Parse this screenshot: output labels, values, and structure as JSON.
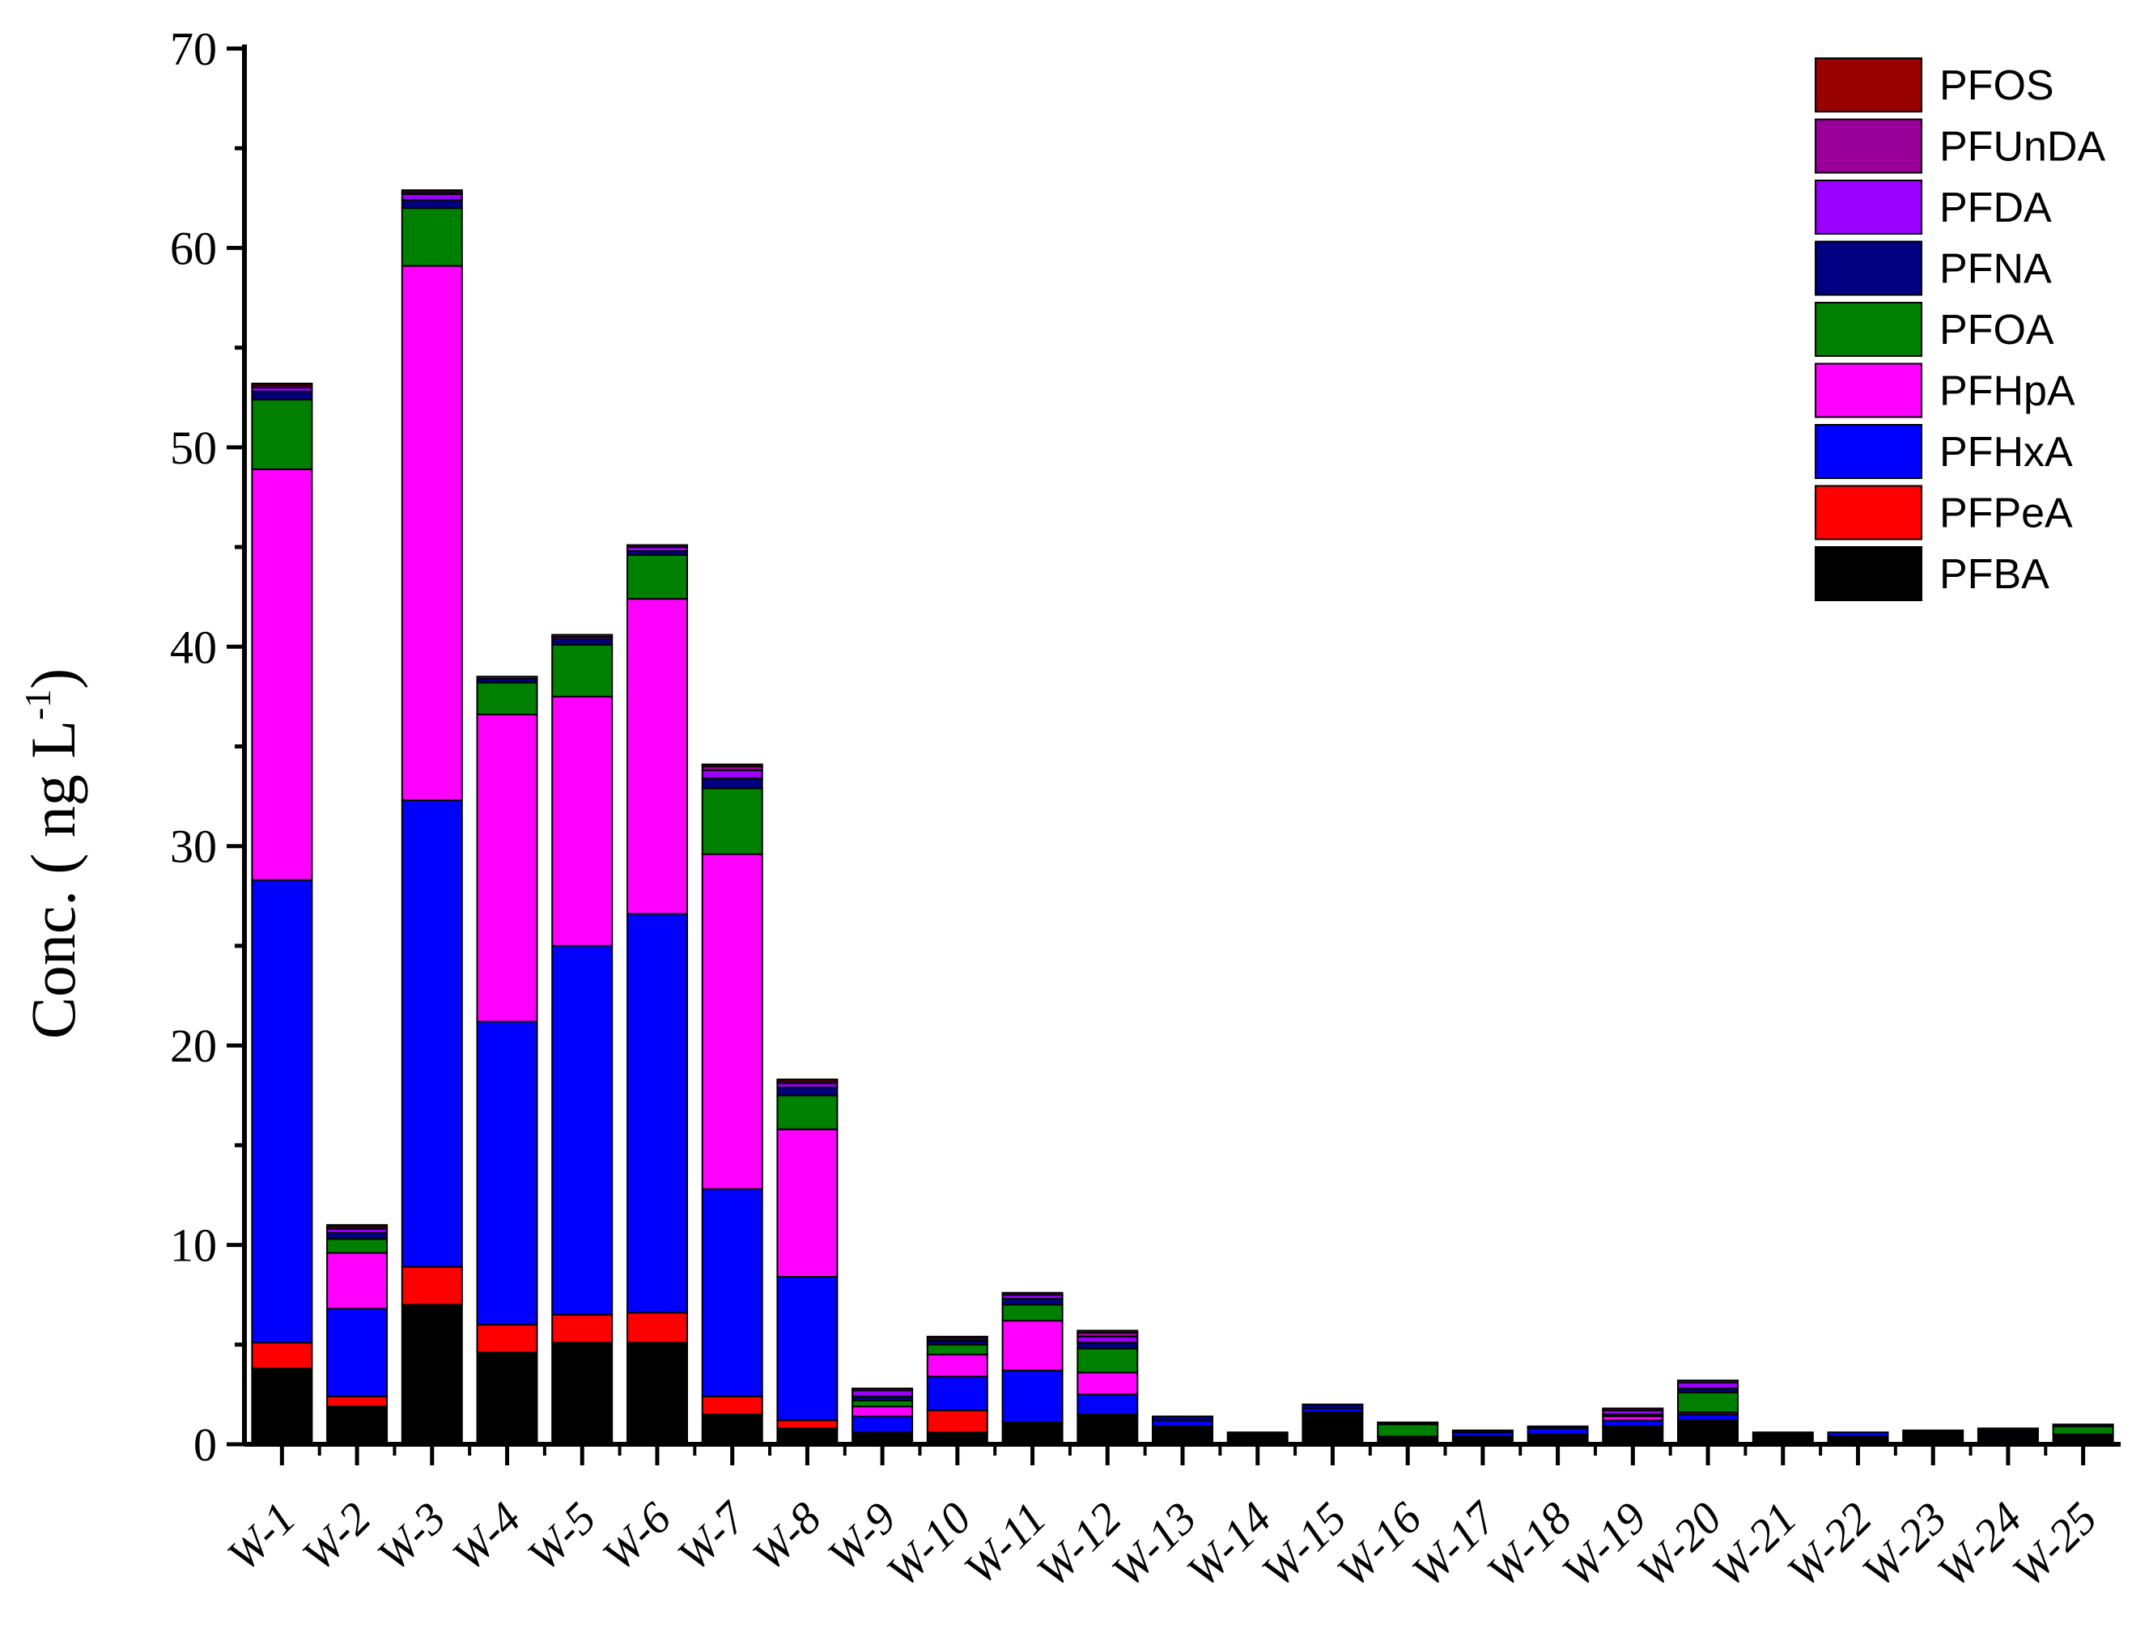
{
  "chart_data": {
    "type": "bar",
    "stacked": true,
    "ylabel": "Conc. ( ng L-1)",
    "ylabel_main": "Conc. ( ng L",
    "ylabel_sup": "-1",
    "ylabel_close": ")",
    "ylim": [
      0,
      70
    ],
    "yticks": [
      0,
      10,
      20,
      30,
      40,
      50,
      60,
      70
    ],
    "legend_position": "top-right",
    "categories": [
      "W-1",
      "W-2",
      "W-3",
      "W-4",
      "W-5",
      "W-6",
      "W-7",
      "W-8",
      "W-9",
      "W-10",
      "W-11",
      "W-12",
      "W-13",
      "W-14",
      "W-15",
      "W-16",
      "W-17",
      "W-18",
      "W-19",
      "W-20",
      "W-21",
      "W-22",
      "W-23",
      "W-24",
      "W-25"
    ],
    "series": [
      {
        "name": "PFBA",
        "color": "#000000",
        "values": [
          3.8,
          1.9,
          7.0,
          4.6,
          5.1,
          5.1,
          1.5,
          0.8,
          0.6,
          0.6,
          1.1,
          1.5,
          0.9,
          0.6,
          1.6,
          0.4,
          0.4,
          0.5,
          0.9,
          1.2,
          0.6,
          0.4,
          0.7,
          0.7,
          0.5
        ]
      },
      {
        "name": "PFPeA",
        "color": "#ff0000",
        "values": [
          1.3,
          0.5,
          1.9,
          1.4,
          1.4,
          1.5,
          0.9,
          0.4,
          0.0,
          1.1,
          0.0,
          0.0,
          0.0,
          0.0,
          0.0,
          0.0,
          0.0,
          0.0,
          0.0,
          0.0,
          0.0,
          0.0,
          0.0,
          0.0,
          0.0
        ]
      },
      {
        "name": "PFHxA",
        "color": "#0000ff",
        "values": [
          23.2,
          4.4,
          23.4,
          15.2,
          18.5,
          20.0,
          10.4,
          7.2,
          0.8,
          1.7,
          2.6,
          1.0,
          0.3,
          0.0,
          0.2,
          0.0,
          0.2,
          0.3,
          0.3,
          0.3,
          0.0,
          0.2,
          0.0,
          0.0,
          0.0
        ]
      },
      {
        "name": "PFHpA",
        "color": "#ff00ff",
        "values": [
          20.6,
          2.8,
          26.8,
          15.4,
          12.5,
          15.8,
          16.8,
          7.4,
          0.5,
          1.1,
          2.5,
          1.1,
          0.0,
          0.0,
          0.0,
          0.0,
          0.0,
          0.0,
          0.2,
          0.1,
          0.0,
          0.0,
          0.0,
          0.0,
          0.0
        ]
      },
      {
        "name": "PFOA",
        "color": "#008000",
        "values": [
          3.5,
          0.7,
          2.9,
          1.6,
          2.6,
          2.2,
          3.3,
          1.7,
          0.3,
          0.5,
          0.8,
          1.2,
          0.0,
          0.0,
          0.0,
          0.6,
          0.0,
          0.0,
          0.0,
          1.0,
          0.0,
          0.0,
          0.0,
          0.0,
          0.4
        ]
      },
      {
        "name": "PFNA",
        "color": "#000080",
        "values": [
          0.4,
          0.3,
          0.4,
          0.2,
          0.3,
          0.2,
          0.5,
          0.4,
          0.2,
          0.2,
          0.3,
          0.3,
          0.2,
          0.0,
          0.2,
          0.1,
          0.1,
          0.1,
          0.1,
          0.2,
          0.0,
          0.0,
          0.0,
          0.1,
          0.1
        ]
      },
      {
        "name": "PFDA",
        "color": "#9900ff",
        "values": [
          0.2,
          0.2,
          0.3,
          0.1,
          0.1,
          0.2,
          0.4,
          0.2,
          0.3,
          0.1,
          0.2,
          0.3,
          0.0,
          0.0,
          0.0,
          0.0,
          0.0,
          0.0,
          0.2,
          0.3,
          0.0,
          0.0,
          0.0,
          0.0,
          0.0
        ]
      },
      {
        "name": "PFUnDA",
        "color": "#990099",
        "values": [
          0.1,
          0.1,
          0.1,
          0.0,
          0.1,
          0.1,
          0.2,
          0.1,
          0.1,
          0.1,
          0.1,
          0.2,
          0.0,
          0.0,
          0.0,
          0.0,
          0.0,
          0.0,
          0.1,
          0.1,
          0.0,
          0.0,
          0.0,
          0.0,
          0.0
        ]
      },
      {
        "name": "PFOS",
        "color": "#990000",
        "values": [
          0.1,
          0.1,
          0.1,
          0.0,
          0.0,
          0.0,
          0.1,
          0.1,
          0.0,
          0.0,
          0.0,
          0.1,
          0.0,
          0.0,
          0.0,
          0.0,
          0.0,
          0.0,
          0.0,
          0.0,
          0.0,
          0.0,
          0.0,
          0.0,
          0.0
        ]
      }
    ]
  }
}
